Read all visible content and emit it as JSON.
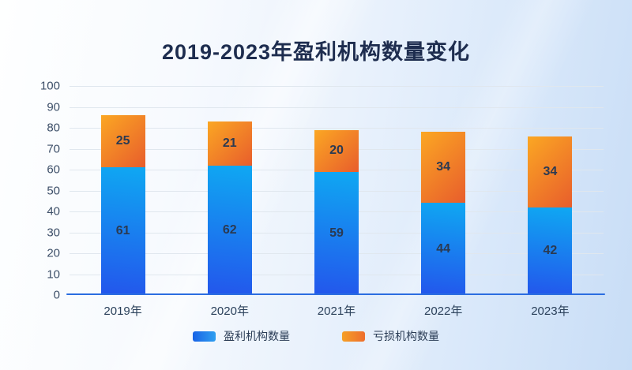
{
  "header": {
    "title": "2019-2023年盈利机构数量变化"
  },
  "chart_data": {
    "type": "bar",
    "stacked": true,
    "title": "2019-2023年盈利机构数量变化",
    "categories": [
      "2019年",
      "2020年",
      "2021年",
      "2022年",
      "2023年"
    ],
    "series": [
      {
        "name": "盈利机构数量",
        "values": [
          61,
          62,
          59,
          44,
          42
        ],
        "gradient_angle": 186,
        "gradient": [
          "#0fa8f2",
          "#2356ec"
        ],
        "legend_gradient": [
          "#1863e6",
          "#2f9ff0"
        ]
      },
      {
        "name": "亏损机构数量",
        "values": [
          25,
          21,
          20,
          34,
          34
        ],
        "gradient_angle": 135,
        "gradient": [
          "#fba723",
          "#e85d2c"
        ],
        "legend_gradient": [
          "#f5a026",
          "#ee6e2d"
        ]
      }
    ],
    "xlabel": "",
    "ylabel": "",
    "ylim": [
      0,
      100
    ],
    "ytick_step": 10,
    "grid": true,
    "legend_position": "bottom"
  },
  "colors": {
    "title_text": "#1e2d4f",
    "axis_line": "#2b6de0",
    "grid_line": "#e0e7ee",
    "tick_text": "#3d4f68",
    "category_text": "#2b415b",
    "value_text": "#2b3a52",
    "legend_text": "#2a3c55",
    "background_left": "#feffff",
    "background_right": "#c8ddf6"
  }
}
